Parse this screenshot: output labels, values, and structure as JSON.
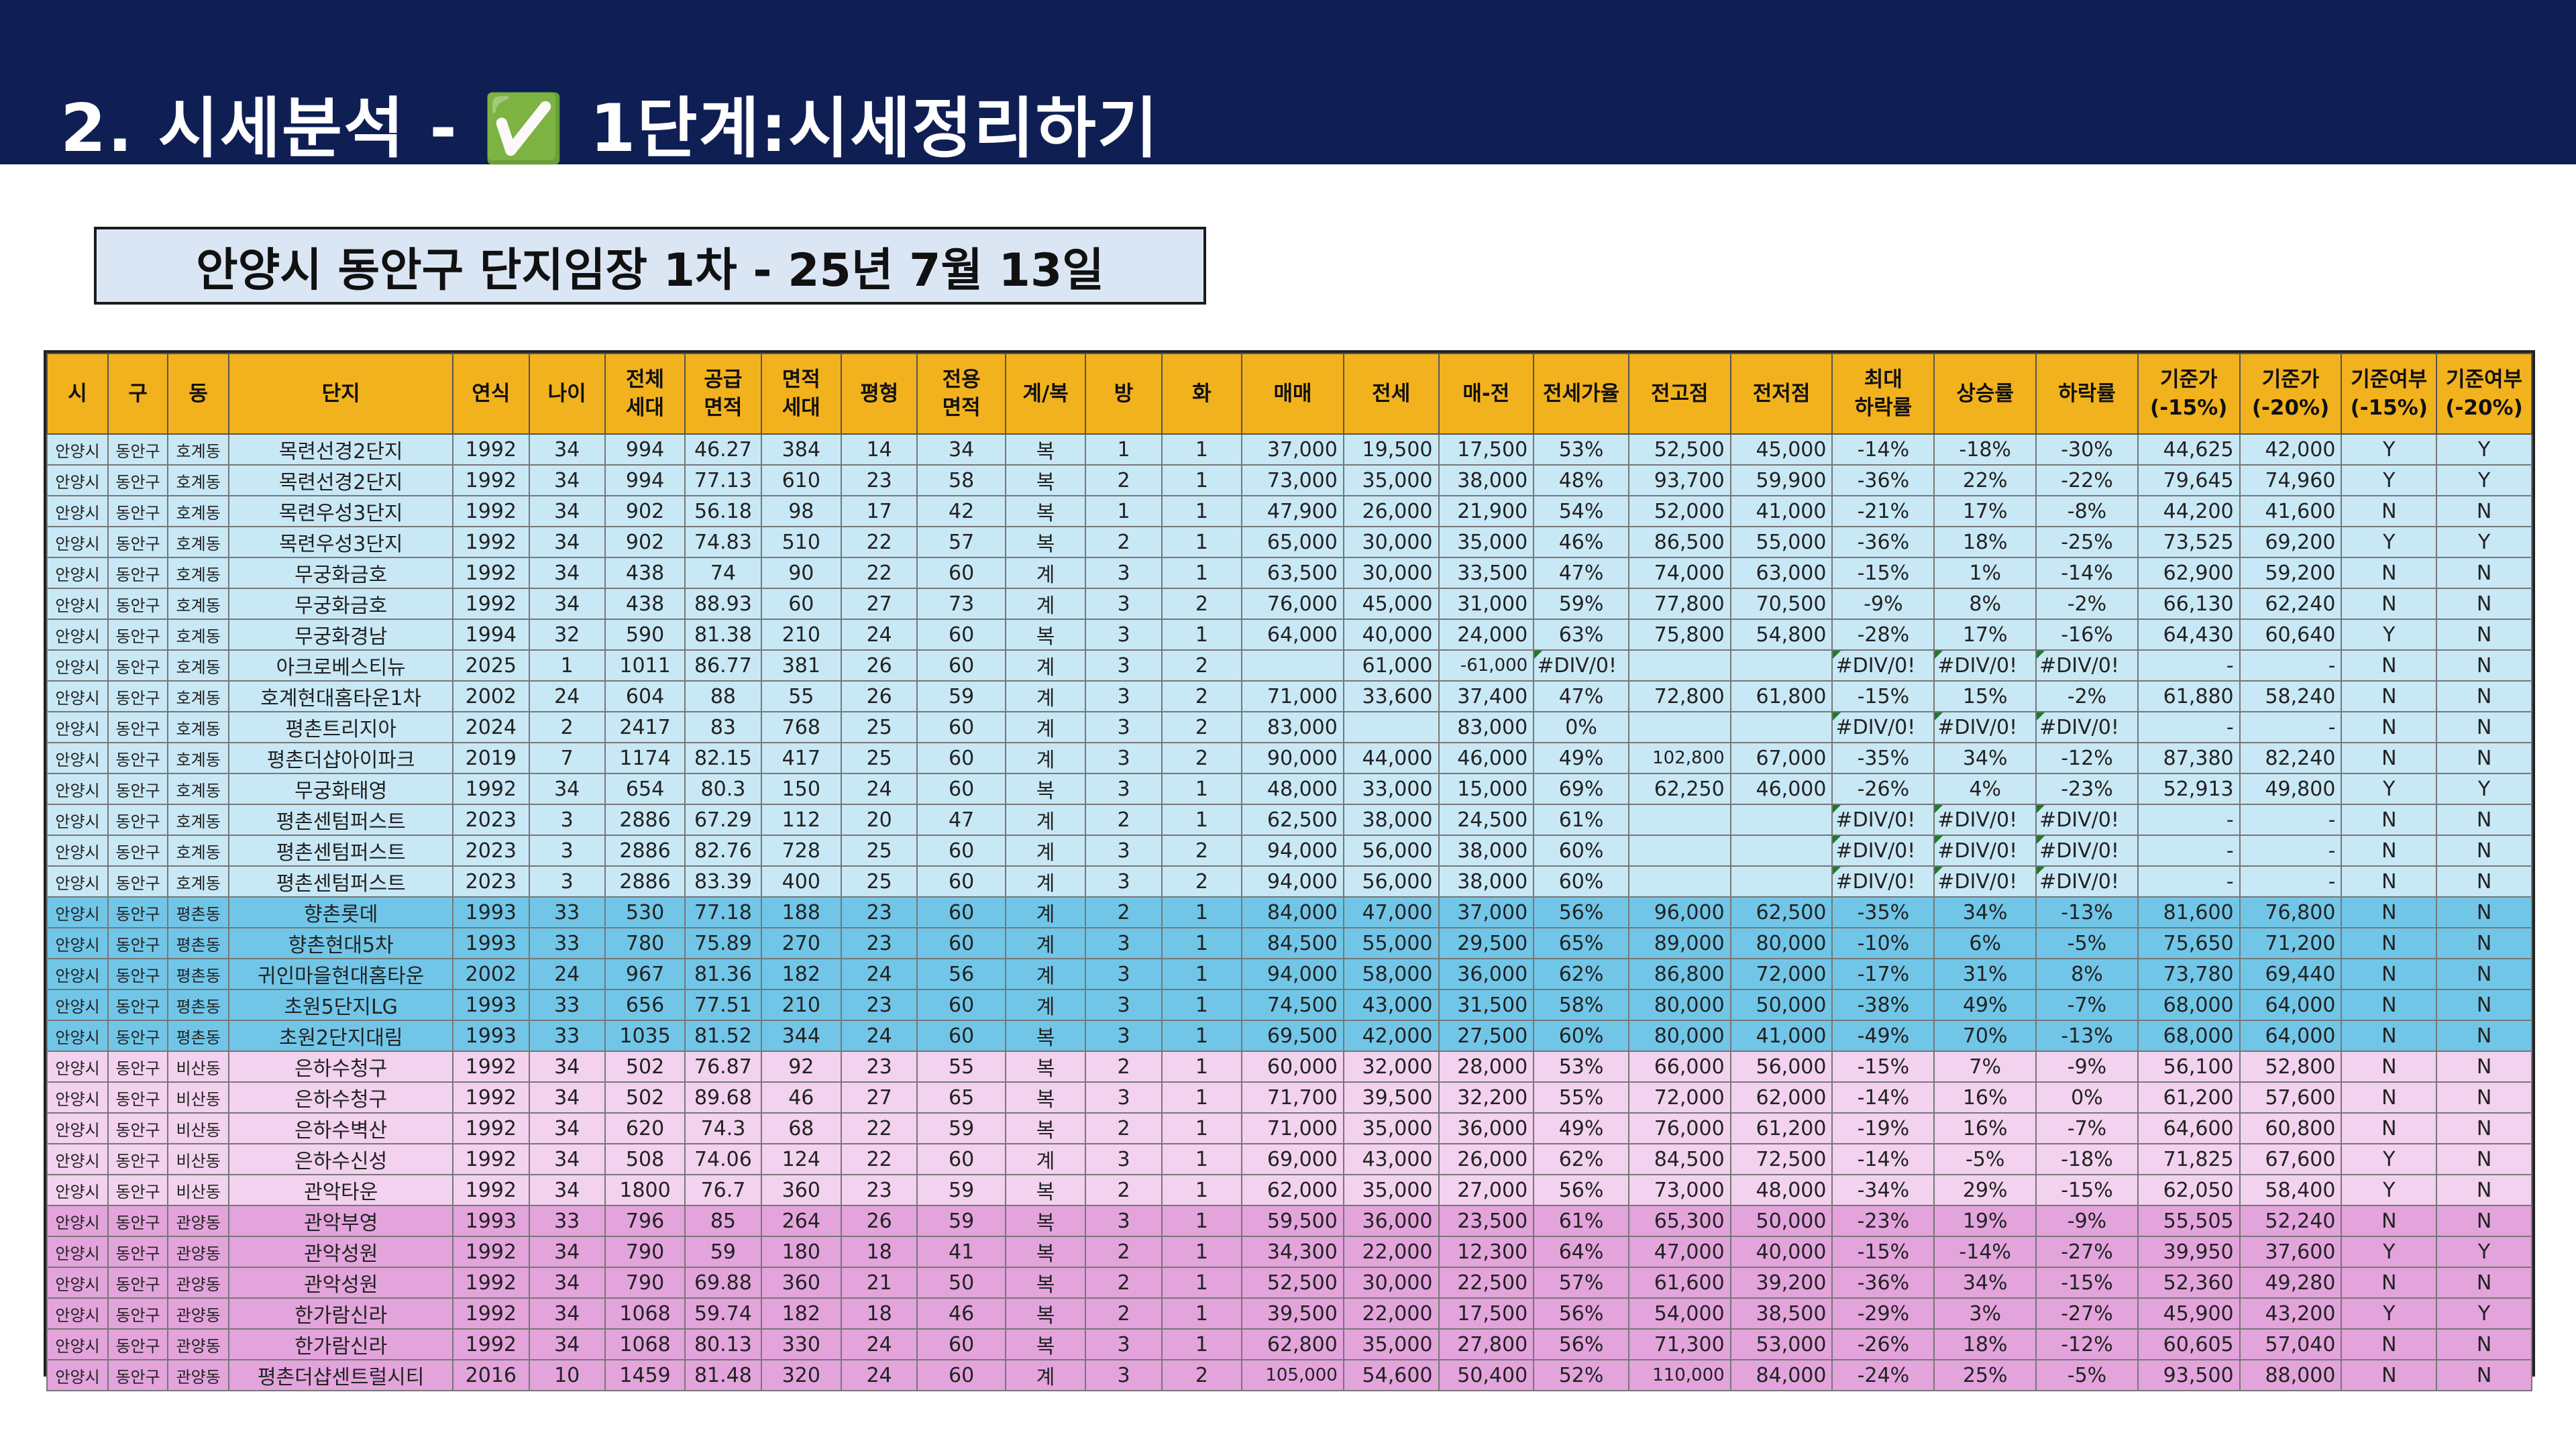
{
  "slide": {
    "title": "2. 시세분석 - ✅ 1단계:시세정리하기",
    "subtitle": "안양시 동안구 단지임장 1차 - 25년 7월 13일"
  },
  "table": {
    "headers": [
      "시",
      "구",
      "동",
      "단지",
      "연식",
      "나이",
      "전체\n세대",
      "공급\n면적",
      "면적\n세대",
      "평형",
      "전용\n면적",
      "계/복",
      "방",
      "화",
      "매매",
      "전세",
      "매-전",
      "전세가율",
      "전고점",
      "전저점",
      "최대\n하락률",
      "상승률",
      "하락률",
      "기준가\n(-15%)",
      "기준가\n(-20%)",
      "기준여부\n(-15%)",
      "기준여부\n(-20%)"
    ],
    "rows": [
      [
        "안양시",
        "동안구",
        "호계동",
        "목련선경2단지",
        "1992",
        "34",
        "994",
        "46.27",
        "384",
        "14",
        "34",
        "복",
        "1",
        "1",
        "37,000",
        "19,500",
        "17,500",
        "53%",
        "52,500",
        "45,000",
        "-14%",
        "-18%",
        "-30%",
        "44,625",
        "42,000",
        "Y",
        "Y"
      ],
      [
        "안양시",
        "동안구",
        "호계동",
        "목련선경2단지",
        "1992",
        "34",
        "994",
        "77.13",
        "610",
        "23",
        "58",
        "복",
        "2",
        "1",
        "73,000",
        "35,000",
        "38,000",
        "48%",
        "93,700",
        "59,900",
        "-36%",
        "22%",
        "-22%",
        "79,645",
        "74,960",
        "Y",
        "Y"
      ],
      [
        "안양시",
        "동안구",
        "호계동",
        "목련우성3단지",
        "1992",
        "34",
        "902",
        "56.18",
        "98",
        "17",
        "42",
        "복",
        "1",
        "1",
        "47,900",
        "26,000",
        "21,900",
        "54%",
        "52,000",
        "41,000",
        "-21%",
        "17%",
        "-8%",
        "44,200",
        "41,600",
        "N",
        "N"
      ],
      [
        "안양시",
        "동안구",
        "호계동",
        "목련우성3단지",
        "1992",
        "34",
        "902",
        "74.83",
        "510",
        "22",
        "57",
        "복",
        "2",
        "1",
        "65,000",
        "30,000",
        "35,000",
        "46%",
        "86,500",
        "55,000",
        "-36%",
        "18%",
        "-25%",
        "73,525",
        "69,200",
        "Y",
        "Y"
      ],
      [
        "안양시",
        "동안구",
        "호계동",
        "무궁화금호",
        "1992",
        "34",
        "438",
        "74",
        "90",
        "22",
        "60",
        "계",
        "3",
        "1",
        "63,500",
        "30,000",
        "33,500",
        "47%",
        "74,000",
        "63,000",
        "-15%",
        "1%",
        "-14%",
        "62,900",
        "59,200",
        "N",
        "N"
      ],
      [
        "안양시",
        "동안구",
        "호계동",
        "무궁화금호",
        "1992",
        "34",
        "438",
        "88.93",
        "60",
        "27",
        "73",
        "계",
        "3",
        "2",
        "76,000",
        "45,000",
        "31,000",
        "59%",
        "77,800",
        "70,500",
        "-9%",
        "8%",
        "-2%",
        "66,130",
        "62,240",
        "N",
        "N"
      ],
      [
        "안양시",
        "동안구",
        "호계동",
        "무궁화경남",
        "1994",
        "32",
        "590",
        "81.38",
        "210",
        "24",
        "60",
        "복",
        "3",
        "1",
        "64,000",
        "40,000",
        "24,000",
        "63%",
        "75,800",
        "54,800",
        "-28%",
        "17%",
        "-16%",
        "64,430",
        "60,640",
        "Y",
        "N"
      ],
      [
        "안양시",
        "동안구",
        "호계동",
        "아크로베스티뉴",
        "2025",
        "1",
        "1011",
        "86.77",
        "381",
        "26",
        "60",
        "계",
        "3",
        "2",
        "",
        "61,000",
        "-61,000",
        "#DIV/0!",
        "",
        "",
        "#DIV/0!",
        "#DIV/0!",
        "#DIV/0!",
        "-",
        "-",
        "N",
        "N"
      ],
      [
        "안양시",
        "동안구",
        "호계동",
        "호계현대홈타운1차",
        "2002",
        "24",
        "604",
        "88",
        "55",
        "26",
        "59",
        "계",
        "3",
        "2",
        "71,000",
        "33,600",
        "37,400",
        "47%",
        "72,800",
        "61,800",
        "-15%",
        "15%",
        "-2%",
        "61,880",
        "58,240",
        "N",
        "N"
      ],
      [
        "안양시",
        "동안구",
        "호계동",
        "평촌트리지아",
        "2024",
        "2",
        "2417",
        "83",
        "768",
        "25",
        "60",
        "계",
        "3",
        "2",
        "83,000",
        "",
        "83,000",
        "0%",
        "",
        "",
        "#DIV/0!",
        "#DIV/0!",
        "#DIV/0!",
        "-",
        "-",
        "N",
        "N"
      ],
      [
        "안양시",
        "동안구",
        "호계동",
        "평촌더샵아이파크",
        "2019",
        "7",
        "1174",
        "82.15",
        "417",
        "25",
        "60",
        "계",
        "3",
        "2",
        "90,000",
        "44,000",
        "46,000",
        "49%",
        "102,800",
        "67,000",
        "-35%",
        "34%",
        "-12%",
        "87,380",
        "82,240",
        "N",
        "N"
      ],
      [
        "안양시",
        "동안구",
        "호계동",
        "무궁화태영",
        "1992",
        "34",
        "654",
        "80.3",
        "150",
        "24",
        "60",
        "복",
        "3",
        "1",
        "48,000",
        "33,000",
        "15,000",
        "69%",
        "62,250",
        "46,000",
        "-26%",
        "4%",
        "-23%",
        "52,913",
        "49,800",
        "Y",
        "Y"
      ],
      [
        "안양시",
        "동안구",
        "호계동",
        "평촌센텀퍼스트",
        "2023",
        "3",
        "2886",
        "67.29",
        "112",
        "20",
        "47",
        "계",
        "2",
        "1",
        "62,500",
        "38,000",
        "24,500",
        "61%",
        "",
        "",
        "#DIV/0!",
        "#DIV/0!",
        "#DIV/0!",
        "-",
        "-",
        "N",
        "N"
      ],
      [
        "안양시",
        "동안구",
        "호계동",
        "평촌센텀퍼스트",
        "2023",
        "3",
        "2886",
        "82.76",
        "728",
        "25",
        "60",
        "계",
        "3",
        "2",
        "94,000",
        "56,000",
        "38,000",
        "60%",
        "",
        "",
        "#DIV/0!",
        "#DIV/0!",
        "#DIV/0!",
        "-",
        "-",
        "N",
        "N"
      ],
      [
        "안양시",
        "동안구",
        "호계동",
        "평촌센텀퍼스트",
        "2023",
        "3",
        "2886",
        "83.39",
        "400",
        "25",
        "60",
        "계",
        "3",
        "2",
        "94,000",
        "56,000",
        "38,000",
        "60%",
        "",
        "",
        "#DIV/0!",
        "#DIV/0!",
        "#DIV/0!",
        "-",
        "-",
        "N",
        "N"
      ],
      [
        "안양시",
        "동안구",
        "평촌동",
        "향촌롯데",
        "1993",
        "33",
        "530",
        "77.18",
        "188",
        "23",
        "60",
        "계",
        "2",
        "1",
        "84,000",
        "47,000",
        "37,000",
        "56%",
        "96,000",
        "62,500",
        "-35%",
        "34%",
        "-13%",
        "81,600",
        "76,800",
        "N",
        "N"
      ],
      [
        "안양시",
        "동안구",
        "평촌동",
        "향촌현대5차",
        "1993",
        "33",
        "780",
        "75.89",
        "270",
        "23",
        "60",
        "계",
        "3",
        "1",
        "84,500",
        "55,000",
        "29,500",
        "65%",
        "89,000",
        "80,000",
        "-10%",
        "6%",
        "-5%",
        "75,650",
        "71,200",
        "N",
        "N"
      ],
      [
        "안양시",
        "동안구",
        "평촌동",
        "귀인마을현대홈타운",
        "2002",
        "24",
        "967",
        "81.36",
        "182",
        "24",
        "56",
        "계",
        "3",
        "1",
        "94,000",
        "58,000",
        "36,000",
        "62%",
        "86,800",
        "72,000",
        "-17%",
        "31%",
        "8%",
        "73,780",
        "69,440",
        "N",
        "N"
      ],
      [
        "안양시",
        "동안구",
        "평촌동",
        "초원5단지LG",
        "1993",
        "33",
        "656",
        "77.51",
        "210",
        "23",
        "60",
        "계",
        "3",
        "1",
        "74,500",
        "43,000",
        "31,500",
        "58%",
        "80,000",
        "50,000",
        "-38%",
        "49%",
        "-7%",
        "68,000",
        "64,000",
        "N",
        "N"
      ],
      [
        "안양시",
        "동안구",
        "평촌동",
        "초원2단지대림",
        "1993",
        "33",
        "1035",
        "81.52",
        "344",
        "24",
        "60",
        "복",
        "3",
        "1",
        "69,500",
        "42,000",
        "27,500",
        "60%",
        "80,000",
        "41,000",
        "-49%",
        "70%",
        "-13%",
        "68,000",
        "64,000",
        "N",
        "N"
      ],
      [
        "안양시",
        "동안구",
        "비산동",
        "은하수청구",
        "1992",
        "34",
        "502",
        "76.87",
        "92",
        "23",
        "55",
        "복",
        "2",
        "1",
        "60,000",
        "32,000",
        "28,000",
        "53%",
        "66,000",
        "56,000",
        "-15%",
        "7%",
        "-9%",
        "56,100",
        "52,800",
        "N",
        "N"
      ],
      [
        "안양시",
        "동안구",
        "비산동",
        "은하수청구",
        "1992",
        "34",
        "502",
        "89.68",
        "46",
        "27",
        "65",
        "복",
        "3",
        "1",
        "71,700",
        "39,500",
        "32,200",
        "55%",
        "72,000",
        "62,000",
        "-14%",
        "16%",
        "0%",
        "61,200",
        "57,600",
        "N",
        "N"
      ],
      [
        "안양시",
        "동안구",
        "비산동",
        "은하수벽산",
        "1992",
        "34",
        "620",
        "74.3",
        "68",
        "22",
        "59",
        "복",
        "2",
        "1",
        "71,000",
        "35,000",
        "36,000",
        "49%",
        "76,000",
        "61,200",
        "-19%",
        "16%",
        "-7%",
        "64,600",
        "60,800",
        "N",
        "N"
      ],
      [
        "안양시",
        "동안구",
        "비산동",
        "은하수신성",
        "1992",
        "34",
        "508",
        "74.06",
        "124",
        "22",
        "60",
        "계",
        "3",
        "1",
        "69,000",
        "43,000",
        "26,000",
        "62%",
        "84,500",
        "72,500",
        "-14%",
        "-5%",
        "-18%",
        "71,825",
        "67,600",
        "Y",
        "N"
      ],
      [
        "안양시",
        "동안구",
        "비산동",
        "관악타운",
        "1992",
        "34",
        "1800",
        "76.7",
        "360",
        "23",
        "59",
        "복",
        "2",
        "1",
        "62,000",
        "35,000",
        "27,000",
        "56%",
        "73,000",
        "48,000",
        "-34%",
        "29%",
        "-15%",
        "62,050",
        "58,400",
        "Y",
        "N"
      ],
      [
        "안양시",
        "동안구",
        "관양동",
        "관악부영",
        "1993",
        "33",
        "796",
        "85",
        "264",
        "26",
        "59",
        "복",
        "3",
        "1",
        "59,500",
        "36,000",
        "23,500",
        "61%",
        "65,300",
        "50,000",
        "-23%",
        "19%",
        "-9%",
        "55,505",
        "52,240",
        "N",
        "N"
      ],
      [
        "안양시",
        "동안구",
        "관양동",
        "관악성원",
        "1992",
        "34",
        "790",
        "59",
        "180",
        "18",
        "41",
        "복",
        "2",
        "1",
        "34,300",
        "22,000",
        "12,300",
        "64%",
        "47,000",
        "40,000",
        "-15%",
        "-14%",
        "-27%",
        "39,950",
        "37,600",
        "Y",
        "Y"
      ],
      [
        "안양시",
        "동안구",
        "관양동",
        "관악성원",
        "1992",
        "34",
        "790",
        "69.88",
        "360",
        "21",
        "50",
        "복",
        "2",
        "1",
        "52,500",
        "30,000",
        "22,500",
        "57%",
        "61,600",
        "39,200",
        "-36%",
        "34%",
        "-15%",
        "52,360",
        "49,280",
        "N",
        "N"
      ],
      [
        "안양시",
        "동안구",
        "관양동",
        "한가람신라",
        "1992",
        "34",
        "1068",
        "59.74",
        "182",
        "18",
        "46",
        "복",
        "2",
        "1",
        "39,500",
        "22,000",
        "17,500",
        "56%",
        "54,000",
        "38,500",
        "-29%",
        "3%",
        "-27%",
        "45,900",
        "43,200",
        "Y",
        "Y"
      ],
      [
        "안양시",
        "동안구",
        "관양동",
        "한가람신라",
        "1992",
        "34",
        "1068",
        "80.13",
        "330",
        "24",
        "60",
        "복",
        "3",
        "1",
        "62,800",
        "35,000",
        "27,800",
        "56%",
        "71,300",
        "53,000",
        "-26%",
        "18%",
        "-12%",
        "60,605",
        "57,040",
        "N",
        "N"
      ],
      [
        "안양시",
        "동안구",
        "관양동",
        "평촌더샵센트럴시티",
        "2016",
        "10",
        "1459",
        "81.48",
        "320",
        "24",
        "60",
        "계",
        "3",
        "2",
        "105,000",
        "54,600",
        "50,400",
        "52%",
        "110,000",
        "84,000",
        "-24%",
        "25%",
        "-5%",
        "93,500",
        "88,000",
        "N",
        "N"
      ]
    ],
    "row_groups": [
      "c",
      "c",
      "c",
      "c",
      "c",
      "c",
      "c",
      "c",
      "c",
      "c",
      "c",
      "c",
      "c",
      "c",
      "c",
      "t",
      "t",
      "t",
      "t",
      "t",
      "v",
      "v",
      "v",
      "v",
      "v",
      "m",
      "m",
      "m",
      "m",
      "m",
      "m"
    ],
    "group_colors": {
      "c": "#c9e8f5",
      "t": "#71c6e8",
      "v": "#f2d2ee",
      "m": "#e3a4dc"
    },
    "header_color": "#f2b21e"
  }
}
